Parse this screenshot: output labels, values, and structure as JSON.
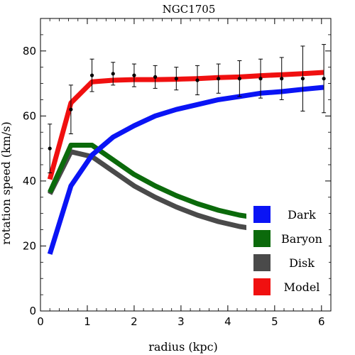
{
  "chart_data": {
    "type": "line",
    "title": "NGC1705",
    "xlabel": "radius (kpc)",
    "ylabel": "rotation speed (km/s)",
    "xlim": [
      0,
      6.2
    ],
    "ylim": [
      0,
      90
    ],
    "xticks": [
      0,
      1,
      2,
      3,
      4,
      5,
      6
    ],
    "yticks": [
      0,
      20,
      40,
      60,
      80
    ],
    "grid": false,
    "legend_position": "bottom-right",
    "series": [
      {
        "name": "Dark",
        "color": "#0a14f5",
        "x": [
          0.2,
          0.65,
          1.1,
          1.55,
          2.0,
          2.45,
          2.9,
          3.35,
          3.8,
          4.25,
          4.7,
          5.15,
          5.6,
          6.05
        ],
        "y": [
          17.5,
          38.5,
          48.0,
          53.5,
          57.0,
          60.0,
          62.0,
          63.5,
          65.0,
          66.0,
          67.0,
          67.5,
          68.2,
          68.8
        ]
      },
      {
        "name": "Baryon",
        "color": "#0b6a0b",
        "x": [
          0.2,
          0.65,
          1.1,
          1.55,
          2.0,
          2.45,
          2.9,
          3.35,
          3.8,
          4.25,
          4.7,
          5.15,
          5.6,
          6.05
        ],
        "y": [
          36.5,
          51.0,
          51.0,
          46.5,
          42.0,
          38.5,
          35.5,
          33.0,
          31.0,
          29.5,
          28.5,
          27.5,
          26.8,
          26.0
        ]
      },
      {
        "name": "Disk",
        "color": "#4a4a4a",
        "x": [
          0.2,
          0.65,
          1.1,
          1.55,
          2.0,
          2.45,
          2.9,
          3.35,
          3.8,
          4.25,
          4.7,
          5.15,
          5.6,
          6.05
        ],
        "y": [
          36.0,
          49.0,
          47.5,
          43.0,
          38.5,
          35.0,
          32.0,
          29.5,
          27.5,
          26.0,
          25.0,
          24.2,
          23.6,
          23.0
        ]
      },
      {
        "name": "Model",
        "color": "#f01010",
        "x": [
          0.2,
          0.65,
          1.1,
          1.55,
          2.0,
          2.45,
          2.9,
          3.35,
          3.8,
          4.25,
          4.7,
          5.15,
          5.6,
          6.05
        ],
        "y": [
          40.5,
          64.0,
          70.5,
          71.0,
          71.2,
          71.2,
          71.3,
          71.5,
          71.8,
          72.0,
          72.4,
          72.7,
          73.0,
          73.4
        ]
      }
    ],
    "observed": {
      "x": [
        0.2,
        0.65,
        1.1,
        1.55,
        2.0,
        2.45,
        2.9,
        3.35,
        3.8,
        4.25,
        4.7,
        5.15,
        5.6,
        6.05
      ],
      "y": [
        50.0,
        62.0,
        72.5,
        73.0,
        72.5,
        72.0,
        71.5,
        71.0,
        71.5,
        71.5,
        71.5,
        71.5,
        71.5,
        71.5
      ],
      "err": [
        7.5,
        7.5,
        5.0,
        3.5,
        3.5,
        3.5,
        3.5,
        4.5,
        4.5,
        5.5,
        6.0,
        6.5,
        10.0,
        10.5
      ]
    },
    "legend_order": [
      "Dark",
      "Baryon",
      "Disk",
      "Model"
    ]
  }
}
